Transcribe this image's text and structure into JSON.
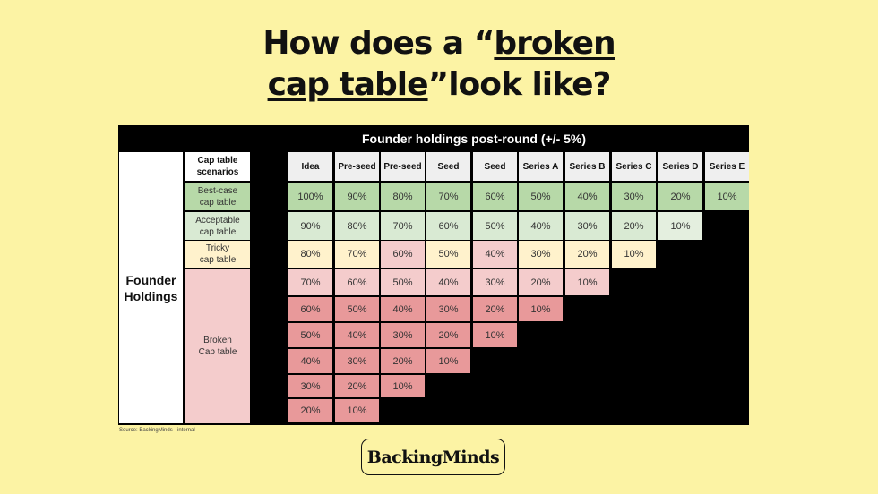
{
  "title": {
    "line1_prefix": "How does a “",
    "line1_underlined": "broken",
    "line2_underlined": "cap table",
    "line2_suffix": "”look like?"
  },
  "table": {
    "header": "Founder holdings post-round (+/- 5%)",
    "row_label_line1": "Founder",
    "row_label_line2": "Holdings",
    "scenario_header_line1": "Cap table",
    "scenario_header_line2": "scenarios",
    "scenarios": {
      "best_line1": "Best-case",
      "best_line2": "cap table",
      "acceptable_line1": "Acceptable",
      "acceptable_line2": "cap table",
      "tricky_line1": "Tricky",
      "tricky_line2": "cap table",
      "broken_line1": "Broken",
      "broken_line2": "Cap table"
    },
    "columns": [
      "Idea",
      "Pre-seed",
      "Pre-seed",
      "Seed",
      "Seed",
      "Series A",
      "Series B",
      "Series C",
      "Series D",
      "Series E"
    ],
    "rows": [
      {
        "category": "best",
        "values": [
          "100%",
          "90%",
          "80%",
          "70%",
          "60%",
          "50%",
          "40%",
          "30%",
          "20%",
          "10%"
        ]
      },
      {
        "category": "acceptable",
        "values": [
          "90%",
          "80%",
          "70%",
          "60%",
          "50%",
          "40%",
          "30%",
          "20%",
          "10%"
        ]
      },
      {
        "category": "tricky",
        "values": [
          "80%",
          "70%",
          "60%",
          "50%",
          "40%",
          "30%",
          "20%",
          "10%"
        ]
      },
      {
        "category": "broken",
        "values": [
          "70%",
          "60%",
          "50%",
          "40%",
          "30%",
          "20%",
          "10%"
        ]
      },
      {
        "category": "broken",
        "values": [
          "60%",
          "50%",
          "40%",
          "30%",
          "20%",
          "10%"
        ]
      },
      {
        "category": "broken",
        "values": [
          "50%",
          "40%",
          "30%",
          "20%",
          "10%"
        ]
      },
      {
        "category": "broken",
        "values": [
          "40%",
          "30%",
          "20%",
          "10%"
        ]
      },
      {
        "category": "broken",
        "values": [
          "30%",
          "20%",
          "10%"
        ]
      },
      {
        "category": "broken",
        "values": [
          "20%",
          "10%"
        ]
      }
    ],
    "row_colors": [
      "#b7d9a8",
      "#d9ead3",
      "#fff2cc",
      "#f4cccc",
      "#e8999a",
      "#e8999a",
      "#e8999a",
      "#e8999a",
      "#e8999a"
    ],
    "cell_overrides": [
      {
        "row": 1,
        "col": 8,
        "color": "#e4efdf"
      },
      {
        "row": 2,
        "col": 2,
        "color": "#f4cccc"
      },
      {
        "row": 2,
        "col": 4,
        "color": "#f4cccc"
      },
      {
        "row": 2,
        "col": 6,
        "color": "#fff2cc"
      },
      {
        "row": 2,
        "col": 7,
        "color": "#fff2cc"
      }
    ]
  },
  "source": "Source: BackingMinds - internal",
  "logo": "BackingMinds"
}
